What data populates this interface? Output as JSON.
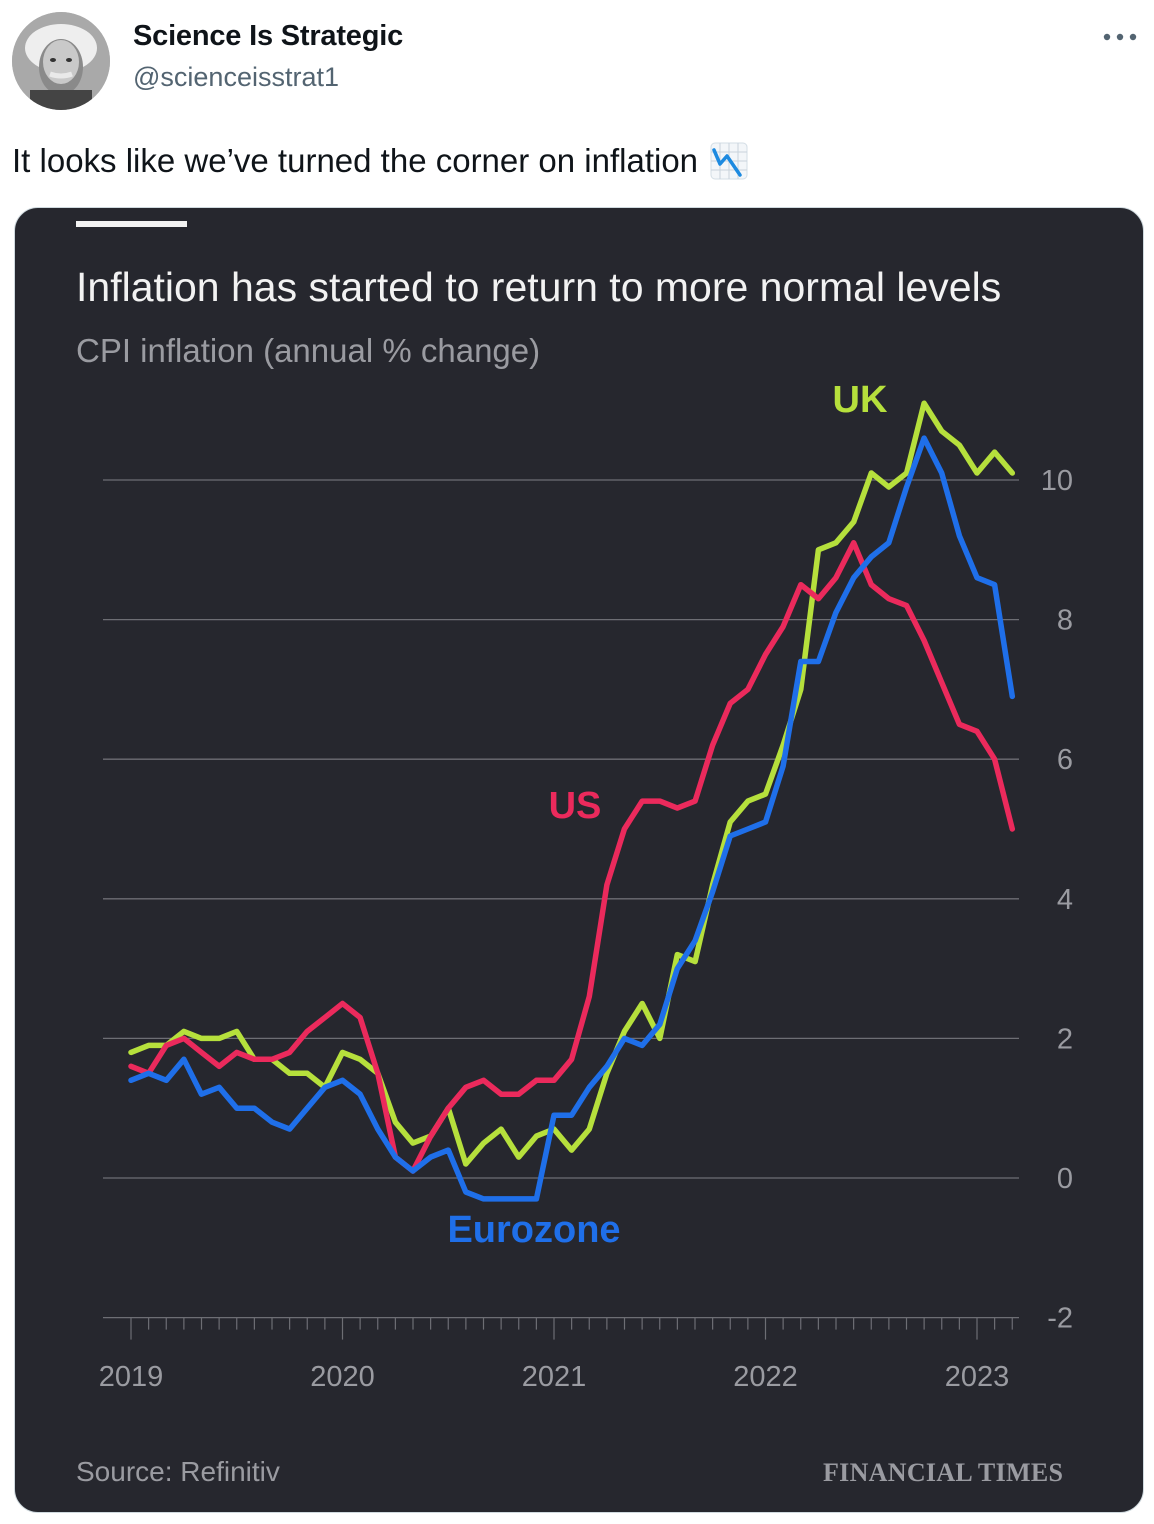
{
  "tweet": {
    "display_name": "Science Is Strategic",
    "handle": "@scienceisstrat1",
    "text": "It looks like we’ve turned the corner on inflation",
    "emoji_name": "chart-decreasing-icon",
    "more_icon": "more-icon"
  },
  "media": {
    "title": "Inflation has started to return to more normal levels",
    "subtitle": "CPI inflation (annual % change)",
    "source": "Source: Refinitiv",
    "publisher": "FINANCIAL TIMES"
  },
  "chart_data": {
    "type": "line",
    "title": "Inflation has started to return to more normal levels",
    "subtitle": "CPI inflation (annual % change)",
    "xlabel": "",
    "ylabel": "",
    "ylim": [
      -2,
      11.5
    ],
    "xlim": [
      2019.0,
      2023.3
    ],
    "yticks": [
      -2,
      0,
      2,
      4,
      6,
      8,
      10
    ],
    "xticks": [
      2019,
      2020,
      2021,
      2022,
      2023
    ],
    "grid": true,
    "y_axis_side": "right",
    "series": [
      {
        "name": "UK",
        "color": "#b6e03c",
        "x": [
          2019.0,
          2019.083,
          2019.167,
          2019.25,
          2019.333,
          2019.417,
          2019.5,
          2019.583,
          2019.667,
          2019.75,
          2019.833,
          2019.917,
          2020.0,
          2020.083,
          2020.167,
          2020.25,
          2020.333,
          2020.417,
          2020.5,
          2020.583,
          2020.667,
          2020.75,
          2020.833,
          2020.917,
          2021.0,
          2021.083,
          2021.167,
          2021.25,
          2021.333,
          2021.417,
          2021.5,
          2021.583,
          2021.667,
          2021.75,
          2021.833,
          2021.917,
          2022.0,
          2022.083,
          2022.167,
          2022.25,
          2022.333,
          2022.417,
          2022.5,
          2022.583,
          2022.667,
          2022.75,
          2022.833,
          2022.917,
          2023.0,
          2023.083,
          2023.167
        ],
        "values": [
          1.8,
          1.9,
          1.9,
          2.1,
          2.0,
          2.0,
          2.1,
          1.7,
          1.7,
          1.5,
          1.5,
          1.3,
          1.8,
          1.7,
          1.5,
          0.8,
          0.5,
          0.6,
          1.0,
          0.2,
          0.5,
          0.7,
          0.3,
          0.6,
          0.7,
          0.4,
          0.7,
          1.5,
          2.1,
          2.5,
          2.0,
          3.2,
          3.1,
          4.2,
          5.1,
          5.4,
          5.5,
          6.2,
          7.0,
          9.0,
          9.1,
          9.4,
          10.1,
          9.9,
          10.1,
          11.1,
          10.7,
          10.5,
          10.1,
          10.4,
          10.1
        ]
      },
      {
        "name": "US",
        "color": "#eb2a5c",
        "x": [
          2019.0,
          2019.083,
          2019.167,
          2019.25,
          2019.333,
          2019.417,
          2019.5,
          2019.583,
          2019.667,
          2019.75,
          2019.833,
          2019.917,
          2020.0,
          2020.083,
          2020.167,
          2020.25,
          2020.333,
          2020.417,
          2020.5,
          2020.583,
          2020.667,
          2020.75,
          2020.833,
          2020.917,
          2021.0,
          2021.083,
          2021.167,
          2021.25,
          2021.333,
          2021.417,
          2021.5,
          2021.583,
          2021.667,
          2021.75,
          2021.833,
          2021.917,
          2022.0,
          2022.083,
          2022.167,
          2022.25,
          2022.333,
          2022.417,
          2022.5,
          2022.583,
          2022.667,
          2022.75,
          2022.833,
          2022.917,
          2023.0,
          2023.083,
          2023.167
        ],
        "values": [
          1.6,
          1.5,
          1.9,
          2.0,
          1.8,
          1.6,
          1.8,
          1.7,
          1.7,
          1.8,
          2.1,
          2.3,
          2.5,
          2.3,
          1.5,
          0.3,
          0.1,
          0.6,
          1.0,
          1.3,
          1.4,
          1.2,
          1.2,
          1.4,
          1.4,
          1.7,
          2.6,
          4.2,
          5.0,
          5.4,
          5.4,
          5.3,
          5.4,
          6.2,
          6.8,
          7.0,
          7.5,
          7.9,
          8.5,
          8.3,
          8.6,
          9.1,
          8.5,
          8.3,
          8.2,
          7.7,
          7.1,
          6.5,
          6.4,
          6.0,
          5.0
        ]
      },
      {
        "name": "Eurozone",
        "color": "#1f6fe9",
        "x": [
          2019.0,
          2019.083,
          2019.167,
          2019.25,
          2019.333,
          2019.417,
          2019.5,
          2019.583,
          2019.667,
          2019.75,
          2019.833,
          2019.917,
          2020.0,
          2020.083,
          2020.167,
          2020.25,
          2020.333,
          2020.417,
          2020.5,
          2020.583,
          2020.667,
          2020.75,
          2020.833,
          2020.917,
          2021.0,
          2021.083,
          2021.167,
          2021.25,
          2021.333,
          2021.417,
          2021.5,
          2021.583,
          2021.667,
          2021.75,
          2021.833,
          2021.917,
          2022.0,
          2022.083,
          2022.167,
          2022.25,
          2022.333,
          2022.417,
          2022.5,
          2022.583,
          2022.667,
          2022.75,
          2022.833,
          2022.917,
          2023.0,
          2023.083,
          2023.167
        ],
        "values": [
          1.4,
          1.5,
          1.4,
          1.7,
          1.2,
          1.3,
          1.0,
          1.0,
          0.8,
          0.7,
          1.0,
          1.3,
          1.4,
          1.2,
          0.7,
          0.3,
          0.1,
          0.3,
          0.4,
          -0.2,
          -0.3,
          -0.3,
          -0.3,
          -0.3,
          0.9,
          0.9,
          1.3,
          1.6,
          2.0,
          1.9,
          2.2,
          3.0,
          3.4,
          4.1,
          4.9,
          5.0,
          5.1,
          5.9,
          7.4,
          7.4,
          8.1,
          8.6,
          8.9,
          9.1,
          9.9,
          10.6,
          10.1,
          9.2,
          8.6,
          8.5,
          6.9
        ]
      }
    ],
    "labels": [
      {
        "series": "UK",
        "text": "UK"
      },
      {
        "series": "US",
        "text": "US"
      },
      {
        "series": "Eurozone",
        "text": "Eurozone"
      }
    ]
  }
}
